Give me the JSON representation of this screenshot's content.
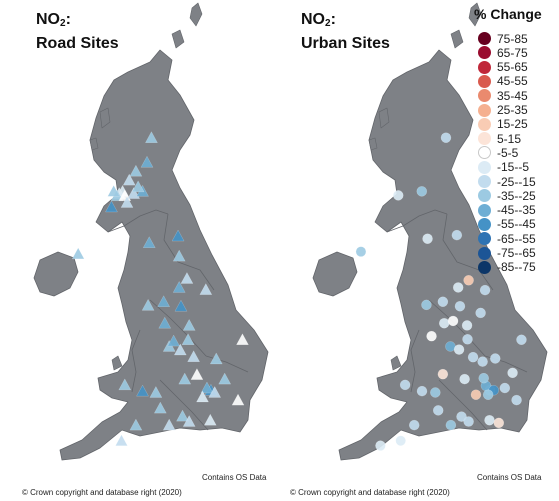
{
  "panels": [
    {
      "id": "road",
      "title_main": "NO",
      "title_sub": "2",
      "title_colon": ":",
      "title_line2": "Road Sites",
      "credit_os": "Contains OS Data",
      "credit_crown": "© Crown copyright and database right (2020)",
      "marker": "triangle",
      "sites": [
        {
          "lon": -2.8,
          "lat": 57.15,
          "change": -35
        },
        {
          "lon": -3.0,
          "lat": 56.6,
          "change": -40
        },
        {
          "lon": -3.5,
          "lat": 56.4,
          "change": -30
        },
        {
          "lon": -3.8,
          "lat": 56.2,
          "change": -25
        },
        {
          "lon": -4.1,
          "lat": 55.95,
          "change": -10
        },
        {
          "lon": -4.25,
          "lat": 55.9,
          "change": -15
        },
        {
          "lon": -4.35,
          "lat": 55.85,
          "change": -35
        },
        {
          "lon": -4.0,
          "lat": 55.85,
          "change": -5
        },
        {
          "lon": -3.6,
          "lat": 55.9,
          "change": -20
        },
        {
          "lon": -3.2,
          "lat": 55.95,
          "change": -40
        },
        {
          "lon": -3.4,
          "lat": 56.05,
          "change": -30
        },
        {
          "lon": -4.6,
          "lat": 55.6,
          "change": -50
        },
        {
          "lon": -3.9,
          "lat": 55.7,
          "change": -25
        },
        {
          "lon": -4.5,
          "lat": 55.95,
          "change": -35
        },
        {
          "lon": -5.9,
          "lat": 54.6,
          "change": -5
        },
        {
          "lon": -6.1,
          "lat": 54.55,
          "change": -30
        },
        {
          "lon": -1.6,
          "lat": 54.95,
          "change": -50
        },
        {
          "lon": -2.9,
          "lat": 54.8,
          "change": -45
        },
        {
          "lon": -1.55,
          "lat": 54.5,
          "change": -35
        },
        {
          "lon": -1.2,
          "lat": 54.0,
          "change": -25
        },
        {
          "lon": -1.55,
          "lat": 53.8,
          "change": -45
        },
        {
          "lon": -2.25,
          "lat": 53.48,
          "change": -40
        },
        {
          "lon": -2.95,
          "lat": 53.4,
          "change": -35
        },
        {
          "lon": -1.47,
          "lat": 53.38,
          "change": -50
        },
        {
          "lon": -0.35,
          "lat": 53.75,
          "change": -25
        },
        {
          "lon": -1.1,
          "lat": 52.95,
          "change": -30
        },
        {
          "lon": -2.0,
          "lat": 52.48,
          "change": -30
        },
        {
          "lon": -1.8,
          "lat": 52.6,
          "change": -40
        },
        {
          "lon": -1.5,
          "lat": 52.4,
          "change": -25
        },
        {
          "lon": -2.2,
          "lat": 53.0,
          "change": -45
        },
        {
          "lon": -1.15,
          "lat": 52.63,
          "change": -35
        },
        {
          "lon": -0.9,
          "lat": 52.25,
          "change": -20
        },
        {
          "lon": 1.3,
          "lat": 52.63,
          "change": -5
        },
        {
          "lon": 0.12,
          "lat": 52.2,
          "change": -35
        },
        {
          "lon": -2.6,
          "lat": 51.45,
          "change": -30
        },
        {
          "lon": -3.2,
          "lat": 51.48,
          "change": -50
        },
        {
          "lon": -4.0,
          "lat": 51.62,
          "change": -30
        },
        {
          "lon": -0.12,
          "lat": 51.5,
          "change": -50
        },
        {
          "lon": -0.3,
          "lat": 51.55,
          "change": -40
        },
        {
          "lon": 0.05,
          "lat": 51.45,
          "change": -25
        },
        {
          "lon": -0.5,
          "lat": 51.35,
          "change": -15
        },
        {
          "lon": -1.3,
          "lat": 51.75,
          "change": -30
        },
        {
          "lon": -1.4,
          "lat": 50.92,
          "change": -35
        },
        {
          "lon": -1.1,
          "lat": 50.8,
          "change": -20
        },
        {
          "lon": -0.15,
          "lat": 50.83,
          "change": -10
        },
        {
          "lon": 1.1,
          "lat": 51.28,
          "change": -5
        },
        {
          "lon": -2.0,
          "lat": 50.72,
          "change": -20
        },
        {
          "lon": -3.5,
          "lat": 50.72,
          "change": -30
        },
        {
          "lon": -4.15,
          "lat": 50.37,
          "change": -25
        },
        {
          "lon": -2.4,
          "lat": 51.1,
          "change": -35
        },
        {
          "lon": 0.5,
          "lat": 51.75,
          "change": -30
        },
        {
          "lon": -0.75,
          "lat": 51.85,
          "change": -5
        }
      ]
    },
    {
      "id": "urban",
      "title_main": "NO",
      "title_sub": "2",
      "title_colon": ":",
      "title_line2": "Urban Sites",
      "credit_os": "Contains OS Data",
      "credit_crown": "© Crown copyright and database right (2020)",
      "marker": "circle",
      "sites": [
        {
          "lon": -2.1,
          "lat": 57.15,
          "change": -20
        },
        {
          "lon": -4.25,
          "lat": 55.86,
          "change": -15
        },
        {
          "lon": -3.19,
          "lat": 55.95,
          "change": -30
        },
        {
          "lon": -5.93,
          "lat": 54.6,
          "change": -35
        },
        {
          "lon": -1.61,
          "lat": 54.97,
          "change": -25
        },
        {
          "lon": -2.93,
          "lat": 54.89,
          "change": -10
        },
        {
          "lon": -1.08,
          "lat": 53.96,
          "change": 20
        },
        {
          "lon": -1.55,
          "lat": 53.8,
          "change": -15
        },
        {
          "lon": -2.24,
          "lat": 53.48,
          "change": -25
        },
        {
          "lon": -2.98,
          "lat": 53.41,
          "change": -30
        },
        {
          "lon": -1.47,
          "lat": 53.38,
          "change": -20
        },
        {
          "lon": -0.34,
          "lat": 53.74,
          "change": -20
        },
        {
          "lon": -1.15,
          "lat": 52.95,
          "change": -15
        },
        {
          "lon": -0.54,
          "lat": 53.23,
          "change": -25
        },
        {
          "lon": -2.18,
          "lat": 53.0,
          "change": -10
        },
        {
          "lon": -1.9,
          "lat": 52.48,
          "change": -40
        },
        {
          "lon": -1.51,
          "lat": 52.41,
          "change": -15
        },
        {
          "lon": -1.13,
          "lat": 52.64,
          "change": -20
        },
        {
          "lon": -2.75,
          "lat": 52.71,
          "change": -5
        },
        {
          "lon": -0.88,
          "lat": 52.24,
          "change": -25
        },
        {
          "lon": 1.3,
          "lat": 52.63,
          "change": -25
        },
        {
          "lon": 0.12,
          "lat": 52.21,
          "change": -20
        },
        {
          "lon": -2.58,
          "lat": 51.45,
          "change": -35
        },
        {
          "lon": -3.18,
          "lat": 51.48,
          "change": -25
        },
        {
          "lon": -3.94,
          "lat": 51.62,
          "change": -20
        },
        {
          "lon": -2.24,
          "lat": 51.86,
          "change": 10
        },
        {
          "lon": -1.26,
          "lat": 51.75,
          "change": -15
        },
        {
          "lon": -0.12,
          "lat": 51.5,
          "change": -40
        },
        {
          "lon": -0.3,
          "lat": 51.6,
          "change": -45
        },
        {
          "lon": 0.05,
          "lat": 51.5,
          "change": -55
        },
        {
          "lon": -0.2,
          "lat": 51.4,
          "change": -30
        },
        {
          "lon": 0.55,
          "lat": 51.55,
          "change": -25
        },
        {
          "lon": 1.08,
          "lat": 51.28,
          "change": -20
        },
        {
          "lon": -0.75,
          "lat": 51.4,
          "change": 15
        },
        {
          "lon": -1.4,
          "lat": 50.91,
          "change": -25
        },
        {
          "lon": -1.08,
          "lat": 50.8,
          "change": -20
        },
        {
          "lon": -0.14,
          "lat": 50.83,
          "change": -15
        },
        {
          "lon": 0.28,
          "lat": 50.77,
          "change": 5
        },
        {
          "lon": -1.88,
          "lat": 50.72,
          "change": -30
        },
        {
          "lon": -3.53,
          "lat": 50.72,
          "change": -25
        },
        {
          "lon": -4.14,
          "lat": 50.37,
          "change": -15
        },
        {
          "lon": -5.05,
          "lat": 50.26,
          "change": -10
        },
        {
          "lon": -2.45,
          "lat": 51.05,
          "change": -20
        },
        {
          "lon": 0.9,
          "lat": 51.89,
          "change": -15
        },
        {
          "lon": -0.45,
          "lat": 52.14,
          "change": -25
        },
        {
          "lon": -1.78,
          "lat": 53.05,
          "change": -5
        },
        {
          "lon": -0.4,
          "lat": 51.77,
          "change": -30
        }
      ]
    }
  ],
  "legend": {
    "title": "% Change",
    "items": [
      {
        "label": "75-85",
        "color": "#67001f"
      },
      {
        "label": "65-75",
        "color": "#9a0d2f"
      },
      {
        "label": "55-65",
        "color": "#c0283a"
      },
      {
        "label": "45-55",
        "color": "#d95a4e"
      },
      {
        "label": "35-45",
        "color": "#ea8a6e"
      },
      {
        "label": "25-35",
        "color": "#f5b090"
      },
      {
        "label": "15-25",
        "color": "#f9ccb4"
      },
      {
        "label": "5-15",
        "color": "#fce4d8"
      },
      {
        "label": "-5-5",
        "color": "#ffffff"
      },
      {
        "label": "-15--5",
        "color": "#dcebf5"
      },
      {
        "label": "-25--15",
        "color": "#c2dcee"
      },
      {
        "label": "-35--25",
        "color": "#9ccae2"
      },
      {
        "label": "-45--35",
        "color": "#6eaed4"
      },
      {
        "label": "-55--45",
        "color": "#4592c6"
      },
      {
        "label": "-65--55",
        "color": "#2e73b3"
      },
      {
        "label": "-75--65",
        "color": "#1c5596"
      },
      {
        "label": "-85--75",
        "color": "#0c3668"
      }
    ]
  },
  "colors": {
    "land": "#7e8186",
    "border": "#62656a"
  }
}
